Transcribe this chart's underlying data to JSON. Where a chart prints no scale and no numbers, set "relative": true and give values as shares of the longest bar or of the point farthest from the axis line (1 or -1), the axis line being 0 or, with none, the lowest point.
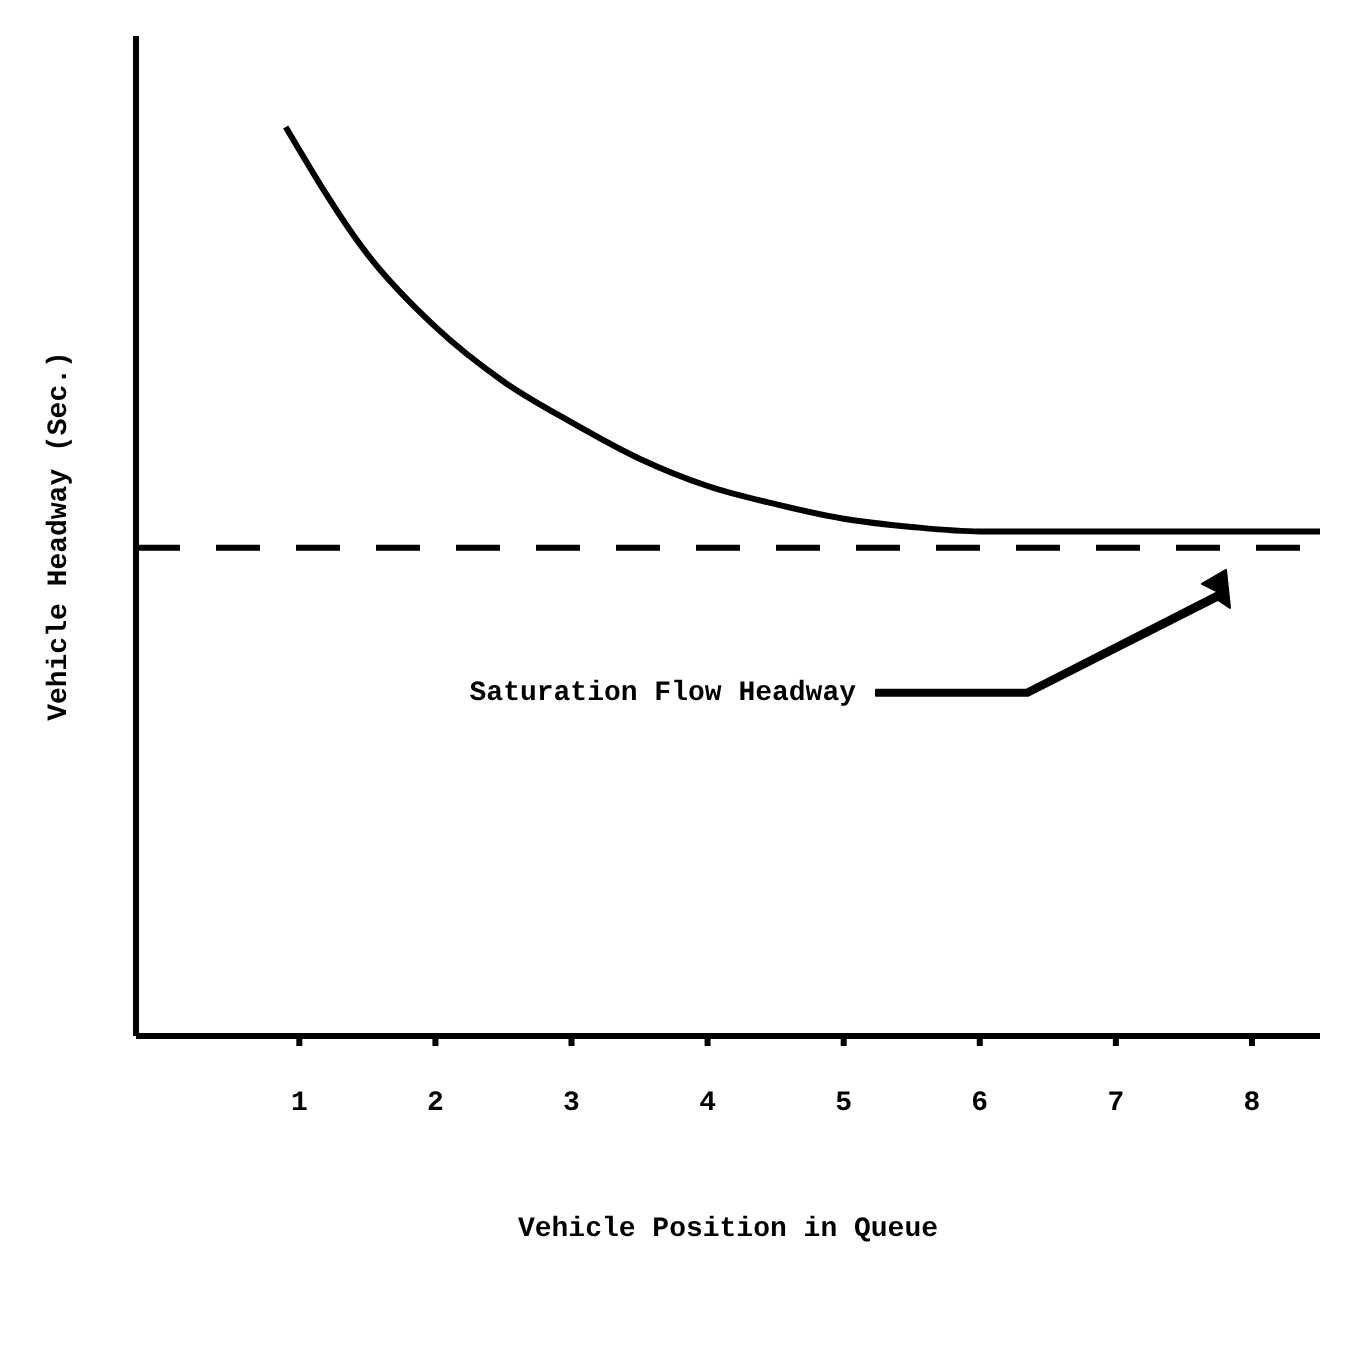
{
  "chart_data": {
    "type": "line",
    "relative": true,
    "xlabel": "Vehicle Position in Queue",
    "ylabel": "Vehicle Headway (Sec.)",
    "x": [
      0.9,
      1.5,
      2,
      2.5,
      3,
      3.5,
      4,
      4.5,
      5,
      5.5,
      6,
      7,
      8,
      8.5
    ],
    "series": [
      {
        "color": "#000000",
        "values": [
          1,
          0.86,
          0.78,
          0.72,
          0.675,
          0.635,
          0.605,
          0.585,
          0.569,
          0.56,
          0.555,
          0.555,
          0.555,
          0.555
        ]
      }
    ],
    "xlim": [
      -0.2,
      8.5
    ],
    "xticks": [
      1,
      2,
      3,
      4,
      5,
      6,
      7,
      8
    ],
    "ref_lines": [
      {
        "axis": "y",
        "value": 0.537,
        "color": "#000000",
        "line_style": "dashed"
      }
    ],
    "annotations": [
      "Saturation Flow Headway"
    ],
    "marker": "none",
    "line_style": "solid",
    "grid": false,
    "legend": false
  }
}
